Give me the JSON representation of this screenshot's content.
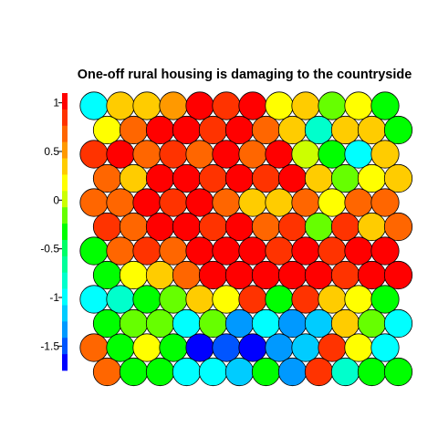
{
  "chart_data": {
    "type": "heatmap",
    "title": "One-off rural housing is damaging to the countryside",
    "layout": "hexagonal",
    "rows": 12,
    "cols": 12,
    "colorbar": {
      "range": [
        -1.75,
        1.1
      ],
      "ticks": [
        1,
        0.5,
        0,
        -0.5,
        -1,
        -1.5
      ],
      "tick_labels": [
        "1",
        "0.5",
        "0",
        "-0.5",
        "-1",
        "-1.5"
      ],
      "colors_top_to_bottom": [
        "#ff0000",
        "#ff3300",
        "#ff6600",
        "#ff9900",
        "#ffcc00",
        "#ffff00",
        "#ccff00",
        "#66ff00",
        "#00ff00",
        "#00ff66",
        "#00ff99",
        "#00ffcc",
        "#00ffff",
        "#00ccff",
        "#0099ff",
        "#0055ff",
        "#0000ff"
      ]
    },
    "values": [
      [
        -0.95,
        0.3,
        0.3,
        0.5,
        1.0,
        0.8,
        1.0,
        0.2,
        0.3,
        -0.2,
        0.1,
        -0.3
      ],
      [
        0.2,
        0.6,
        1.0,
        1.0,
        0.9,
        1.0,
        0.6,
        0.3,
        -0.85,
        0.3,
        0.3,
        -0.3
      ],
      [
        0.8,
        1.0,
        0.6,
        0.8,
        0.6,
        1.0,
        0.6,
        1.0,
        0.0,
        -0.3,
        -1.0,
        0.3
      ],
      [
        0.6,
        0.3,
        1.0,
        1.0,
        0.9,
        1.0,
        0.8,
        1.0,
        0.3,
        -0.1,
        0.2,
        0.4
      ],
      [
        0.6,
        0.6,
        1.0,
        0.8,
        1.0,
        0.6,
        0.4,
        0.3,
        0.6,
        0.2,
        0.6,
        0.6
      ],
      [
        0.8,
        0.6,
        1.0,
        1.0,
        0.9,
        1.0,
        0.6,
        0.8,
        -0.1,
        0.8,
        0.3,
        0.6
      ],
      [
        -0.3,
        0.6,
        0.8,
        0.6,
        1.0,
        1.0,
        1.0,
        0.8,
        1.0,
        0.8,
        1.0,
        1.0
      ],
      [
        -0.3,
        0.2,
        0.4,
        0.6,
        1.0,
        1.0,
        1.0,
        1.0,
        1.0,
        0.8,
        1.0,
        1.0
      ],
      [
        -0.95,
        -0.9,
        -0.4,
        -0.1,
        0.3,
        0.2,
        0.8,
        -0.3,
        0.8,
        0.3,
        0.2,
        -0.3
      ],
      [
        -0.4,
        -0.2,
        -0.2,
        -1.0,
        -0.2,
        -1.4,
        -0.95,
        -1.3,
        -1.1,
        0.3,
        -0.2,
        -1.0
      ],
      [
        0.6,
        -0.4,
        0.1,
        -0.4,
        -1.7,
        -1.5,
        -1.7,
        -1.3,
        -1.1,
        0.8,
        0.2,
        -0.95
      ],
      [
        0.6,
        -0.3,
        -0.3,
        -0.95,
        -0.95,
        -1.1,
        -0.3,
        -1.4,
        0.8,
        -0.9,
        -0.4,
        -0.4
      ]
    ]
  }
}
